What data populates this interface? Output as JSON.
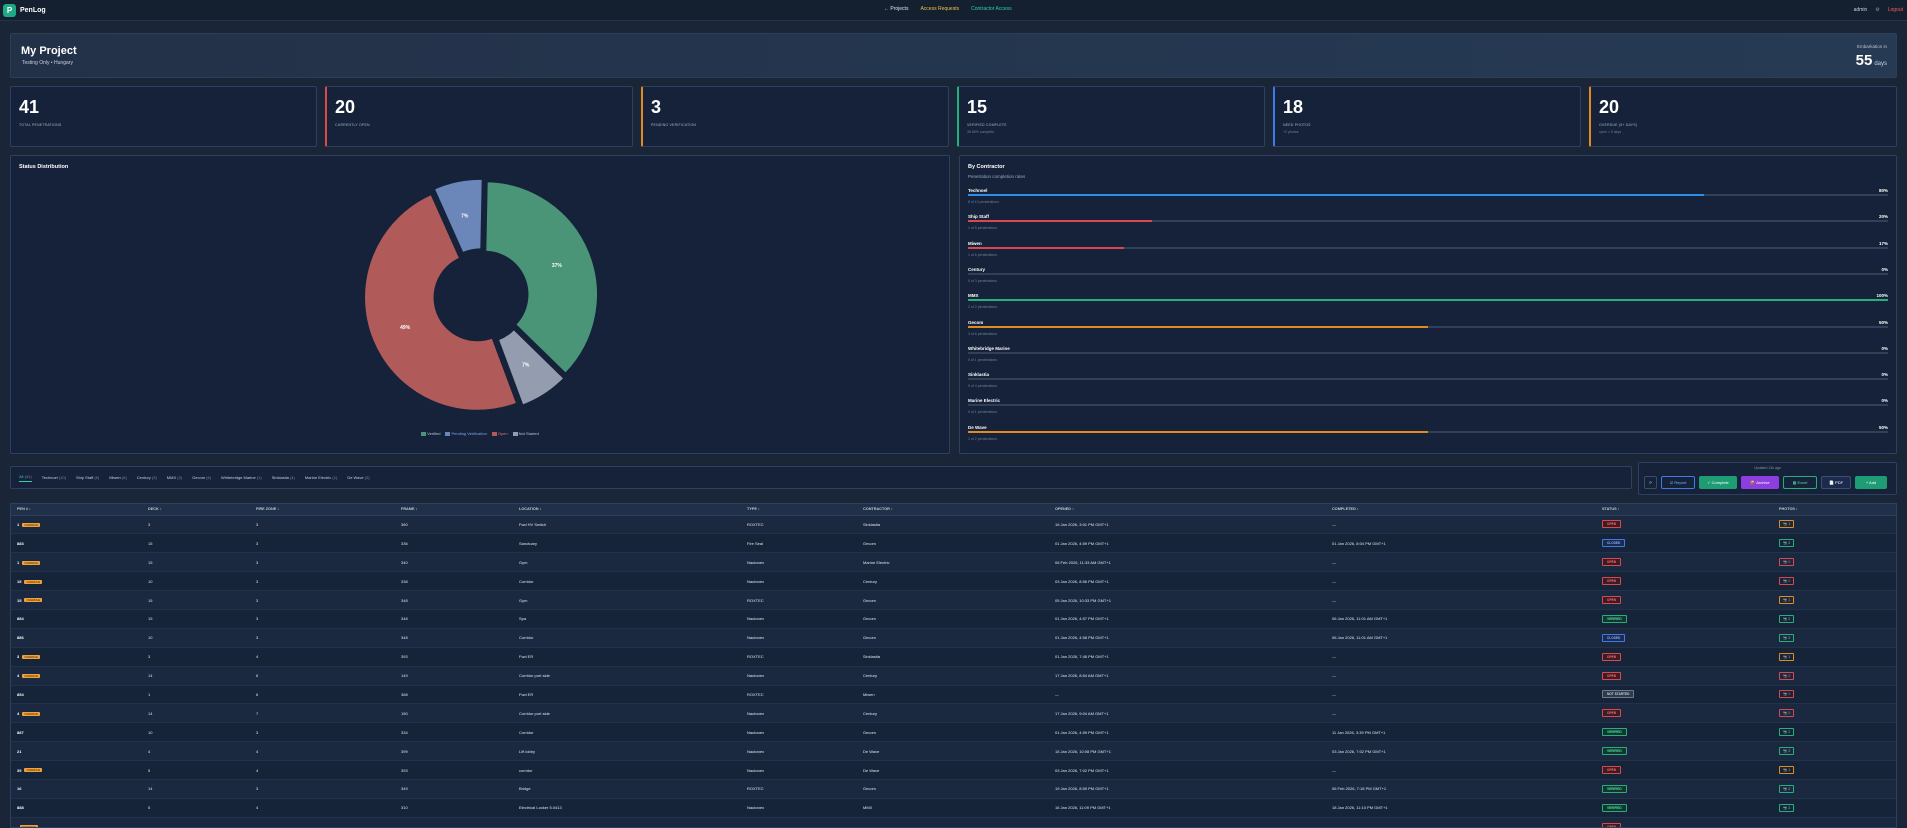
{
  "app": {
    "logo_letter": "P",
    "name": "PenLog"
  },
  "nav": {
    "projects": "← Projects",
    "access_requests": "Access Requests",
    "contractor_access": "Contractor Access"
  },
  "user": {
    "name": "admin",
    "settings_glyph": "⚙",
    "logout": "Logout"
  },
  "colors": {
    "accent": "#1fa884",
    "nav_access": "#f2c14b",
    "nav_contractor": "#2fd1a8",
    "logout": "#ff5a5a"
  },
  "project": {
    "title": "My Project",
    "subtitle": "Testing Only • Hungary",
    "embarkation_label": "Embarkation in",
    "embarkation_days": "55",
    "days_unit": "days"
  },
  "stats": [
    {
      "value": "41",
      "label": "TOTAL PENETRATIONS",
      "sub": "",
      "accent": "#2d4060"
    },
    {
      "value": "20",
      "label": "CURRENTLY OPEN",
      "sub": "",
      "accent": "#d9484c"
    },
    {
      "value": "3",
      "label": "PENDING VERIFICATION",
      "sub": "",
      "accent": "#e08a22"
    },
    {
      "value": "15",
      "label": "VERIFIED COMPLETE",
      "sub": "36.59% complete",
      "accent": "#22b07d"
    },
    {
      "value": "18",
      "label": "NEED PHOTOS",
      "sub": "+2 photos",
      "accent": "#3d7be8"
    },
    {
      "value": "20",
      "label": "OVERDUE (5+ DAYS)",
      "sub": "open > 5 days",
      "accent": "#e08a22"
    }
  ],
  "status_panel": {
    "title": "Status Distribution"
  },
  "chart_data": {
    "type": "pie",
    "title": "Status Distribution",
    "categories": [
      "Verified",
      "Pending Verification",
      "Open",
      "Not Started"
    ],
    "values": [
      37,
      7,
      49,
      7
    ],
    "labels": [
      "37%",
      "7%",
      "49%",
      "7%"
    ],
    "colors": [
      "#4a9478",
      "#6b86b8",
      "#b05a5a",
      "#939daf"
    ],
    "legend_position": "bottom"
  },
  "contractor_panel": {
    "title": "By Contractor",
    "subtitle": "Penetration completion rates",
    "rows": [
      {
        "name": "Technoel",
        "pct": "80%",
        "value": 0.8,
        "color": "#2f8fe6",
        "detail": "8 of 10 penetrations"
      },
      {
        "name": "Ship Staff",
        "pct": "20%",
        "value": 0.2,
        "color": "#d9484c",
        "detail": "1 of 5 penetrations"
      },
      {
        "name": "Miwen",
        "pct": "17%",
        "value": 0.17,
        "color": "#d9484c",
        "detail": "1 of 6 penetrations"
      },
      {
        "name": "Century",
        "pct": "0%",
        "value": 0,
        "color": "#d9484c",
        "detail": "0 of 3 penetrations"
      },
      {
        "name": "MMX",
        "pct": "100%",
        "value": 1,
        "color": "#22b07d",
        "detail": "2 of 2 penetrations"
      },
      {
        "name": "Gecom",
        "pct": "50%",
        "value": 0.5,
        "color": "#e08a22",
        "detail": "3 of 6 penetrations"
      },
      {
        "name": "Whitebridge Marine",
        "pct": "0%",
        "value": 0,
        "color": "#d9484c",
        "detail": "0 of 1 penetrations"
      },
      {
        "name": "Sinklastia",
        "pct": "0%",
        "value": 0,
        "color": "#d9484c",
        "detail": "0 of 4 penetrations"
      },
      {
        "name": "Marine Electric",
        "pct": "0%",
        "value": 0,
        "color": "#d9484c",
        "detail": "0 of 1 penetrations"
      },
      {
        "name": "De Wave",
        "pct": "50%",
        "value": 0.5,
        "color": "#e08a22",
        "detail": "1 of 2 penetrations"
      }
    ]
  },
  "tabs": [
    {
      "label": "All",
      "count": "(41)"
    },
    {
      "label": "Technoel",
      "count": "(10)"
    },
    {
      "label": "Ship Staff",
      "count": "(5)"
    },
    {
      "label": "Miwen",
      "count": "(6)"
    },
    {
      "label": "Century",
      "count": "(3)"
    },
    {
      "label": "MMX",
      "count": "(2)"
    },
    {
      "label": "Gecom",
      "count": "(6)"
    },
    {
      "label": "Whitebridge Marine",
      "count": "(1)"
    },
    {
      "label": "Sinklastia",
      "count": "(4)"
    },
    {
      "label": "Marine Electric",
      "count": "(1)"
    },
    {
      "label": "De Wave",
      "count": "(2)"
    }
  ],
  "actions": {
    "updated": "Updated 13s ago",
    "refresh": "⟳",
    "report": "☑ Report",
    "complete": "✓ Complete",
    "archive": "📦 Archive",
    "excel": "▦ Excel",
    "pdf": "📄 PDF",
    "add": "+ Add"
  },
  "table": {
    "headers": [
      "PEN #",
      "DECK",
      "FIRE ZONE",
      "FRAME",
      "LOCATION",
      "TYPE",
      "CONTRACTOR",
      "OPENED",
      "COMPLETED",
      "STATUS",
      "PHOTOS"
    ],
    "overdue_label": "OVERDUE",
    "rows": [
      {
        "pen": "1",
        "overdue": true,
        "deck": "3",
        "fz": "3",
        "frame": "360",
        "location": "Fwd HV Switch",
        "type": "ROXTEC",
        "contractor": "Sinklastia",
        "opened": "16 Jan 2026, 3:01 PM GMT+1",
        "completed": "—",
        "status": "OPEN",
        "photos": "+ 1",
        "ptype": "orange"
      },
      {
        "pen": "883",
        "overdue": false,
        "deck": "15",
        "fz": "3",
        "frame": "336",
        "location": "Sanctuary",
        "type": "Fire Seal",
        "contractor": "Gecom",
        "opened": "01 Jan 2026, 4:59 PM GMT+1",
        "completed": "01 Jan 2026, 8:04 PM GMT+1",
        "status": "CLOSED",
        "photos": "+ 2",
        "ptype": "green"
      },
      {
        "pen": "1",
        "overdue": true,
        "deck": "15",
        "fz": "3",
        "frame": "340",
        "location": "Gym",
        "type": "Nautonex",
        "contractor": "Marine Electric",
        "opened": "06 Feb 2026, 11:33 AM GMT+1",
        "completed": "—",
        "status": "OPEN",
        "photos": "+ 0",
        "ptype": "red"
      },
      {
        "pen": "15",
        "overdue": true,
        "deck": "10",
        "fz": "3",
        "frame": "338",
        "location": "Corridor",
        "type": "Nautonex",
        "contractor": "Century",
        "opened": "03 Jan 2026, 8:56 PM GMT+1",
        "completed": "—",
        "status": "OPEN",
        "photos": "+ 0",
        "ptype": "red"
      },
      {
        "pen": "15",
        "overdue": true,
        "deck": "15",
        "fz": "3",
        "frame": "348",
        "location": "Gym",
        "type": "ROXTEC",
        "contractor": "Gecom",
        "opened": "05 Jan 2026, 10:33 PM GMT+1",
        "completed": "—",
        "status": "OPEN",
        "photos": "+ 1",
        "ptype": "orange"
      },
      {
        "pen": "884",
        "overdue": false,
        "deck": "15",
        "fz": "3",
        "frame": "348",
        "location": "Spa",
        "type": "Nautonex",
        "contractor": "Gecom",
        "opened": "01 Jan 2026, 4:57 PM GMT+1",
        "completed": "06 Jan 2026, 11:01 AM GMT+1",
        "status": "VERIFIED",
        "photos": "+ 2",
        "ptype": "green"
      },
      {
        "pen": "886",
        "overdue": false,
        "deck": "10",
        "fz": "3",
        "frame": "348",
        "location": "Corridor",
        "type": "Nautonex",
        "contractor": "Gecom",
        "opened": "01 Jan 2026, 4:58 PM GMT+1",
        "completed": "06 Jan 2026, 11:01 AM GMT+1",
        "status": "CLOSED",
        "photos": "+ 2",
        "ptype": "green"
      },
      {
        "pen": "3",
        "overdue": true,
        "deck": "3",
        "fz": "4",
        "frame": "393",
        "location": "Fwd ER",
        "type": "ROXTEC",
        "contractor": "Sinklastia",
        "opened": "01 Jan 2026, 7:48 PM GMT+1",
        "completed": "—",
        "status": "OPEN",
        "photos": "+ 1",
        "ptype": "orange"
      },
      {
        "pen": "4",
        "overdue": true,
        "deck": "14",
        "fz": "6",
        "frame": "149",
        "location": "Corridor port side",
        "type": "Nautonex",
        "contractor": "Century",
        "opened": "17 Jan 2026, 8:54 AM GMT+1",
        "completed": "—",
        "status": "OPEN",
        "photos": "+ 0",
        "ptype": "red"
      },
      {
        "pen": "854",
        "overdue": false,
        "deck": "1",
        "fz": "6",
        "frame": "368",
        "location": "Fwd ER",
        "type": "ROXTEC",
        "contractor": "Miwen",
        "opened": "—",
        "completed": "—",
        "status": "NOT STARTED",
        "photos": "+ 0",
        "ptype": "red"
      },
      {
        "pen": "4",
        "overdue": true,
        "deck": "14",
        "fz": "7",
        "frame": "150",
        "location": "Corridor port side",
        "type": "Nautonex",
        "contractor": "Century",
        "opened": "17 Jan 2026, 9:04 AM GMT+1",
        "completed": "—",
        "status": "OPEN",
        "photos": "+ 0",
        "ptype": "red"
      },
      {
        "pen": "887",
        "overdue": false,
        "deck": "10",
        "fz": "3",
        "frame": "334",
        "location": "Corridor",
        "type": "Nautonex",
        "contractor": "Gecom",
        "opened": "01 Jan 2026, 4:59 PM GMT+1",
        "completed": "11 Jan 2026, 3:39 PM GMT+1",
        "status": "VERIFIED",
        "photos": "+ 2",
        "ptype": "green"
      },
      {
        "pen": "21",
        "overdue": false,
        "deck": "4",
        "fz": "4",
        "frame": "399",
        "location": "Lift lobby",
        "type": "Nautonex",
        "contractor": "De Wave",
        "opened": "15 Jan 2026, 10:08 PM GMT+1",
        "completed": "03 Jan 2026, 7:02 PM GMT+1",
        "status": "VERIFIED",
        "photos": "+ 2",
        "ptype": "green"
      },
      {
        "pen": "39",
        "overdue": true,
        "deck": "5",
        "fz": "4",
        "frame": "393",
        "location": "corridor",
        "type": "Nautonex",
        "contractor": "De Wave",
        "opened": "03 Jan 2026, 7:02 PM GMT+1",
        "completed": "—",
        "status": "OPEN",
        "photos": "+ 1",
        "ptype": "orange"
      },
      {
        "pen": "16",
        "overdue": false,
        "deck": "14",
        "fz": "3",
        "frame": "349",
        "location": "Bridge",
        "type": "ROXTEC",
        "contractor": "Gecom",
        "opened": "19 Jan 2026, 8:59 PM GMT+1",
        "completed": "06 Feb 2026, 7:18 PM GMT+1",
        "status": "VERIFIED",
        "photos": "+ 2",
        "ptype": "green"
      },
      {
        "pen": "888",
        "overdue": false,
        "deck": "5",
        "fz": "4",
        "frame": "310",
        "location": "Electrical Locker 5.0413",
        "type": "Nautonex",
        "contractor": "MMX",
        "opened": "16 Jan 2026, 11:09 PM GMT+1",
        "completed": "18 Jan 2026, 11:10 PM GMT+1",
        "status": "VERIFIED",
        "photos": "+ 2",
        "ptype": "green"
      },
      {
        "pen": "",
        "overdue": true,
        "deck": "",
        "fz": "",
        "frame": "",
        "location": "",
        "type": "",
        "contractor": "",
        "opened": "",
        "completed": "",
        "status": "OPEN",
        "photos": "",
        "ptype": "red"
      }
    ]
  }
}
